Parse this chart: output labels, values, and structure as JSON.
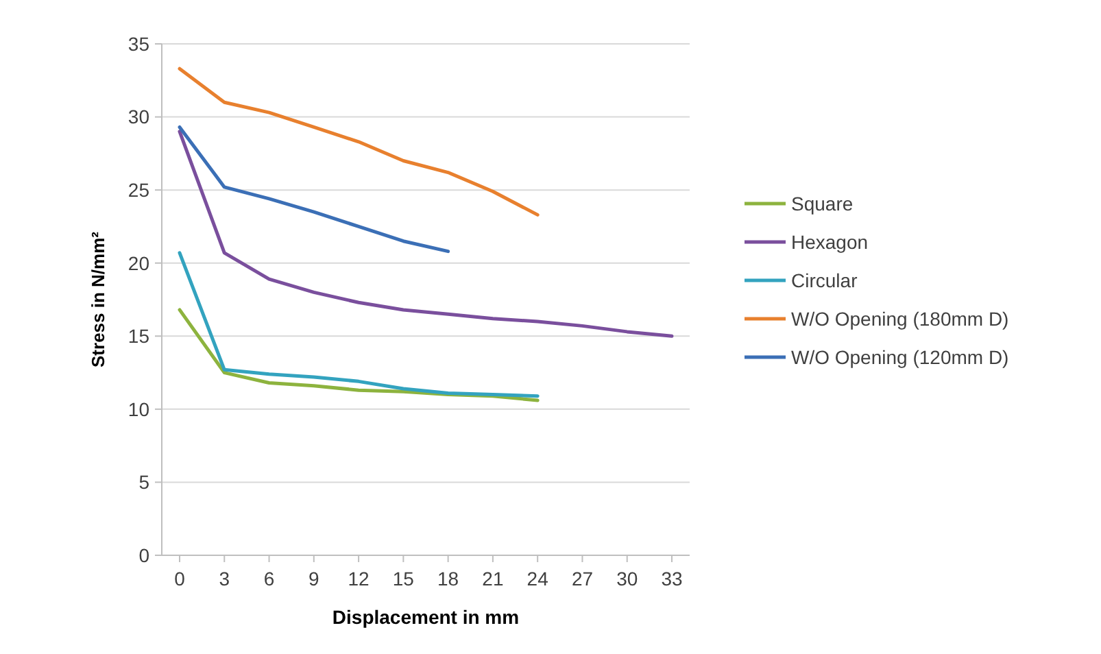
{
  "chart_data": {
    "type": "line",
    "xlabel": "Displacement in mm",
    "ylabel": "Stress in N/mm²",
    "categories": [
      "0",
      "3",
      "6",
      "9",
      "12",
      "15",
      "18",
      "21",
      "24",
      "27",
      "30",
      "33"
    ],
    "ylim": [
      0,
      35
    ],
    "yticks": [
      0,
      5,
      10,
      15,
      20,
      25,
      30,
      35
    ],
    "grid": "y",
    "legend": "right",
    "series": [
      {
        "name": "Square",
        "color": "#8db33e",
        "values": [
          16.8,
          12.5,
          11.8,
          11.6,
          11.3,
          11.2,
          11.0,
          10.9,
          10.6,
          null,
          null,
          null
        ]
      },
      {
        "name": "Hexagon",
        "color": "#7a4f9d",
        "values": [
          29.0,
          20.7,
          18.9,
          18.0,
          17.3,
          16.8,
          16.5,
          16.2,
          16.0,
          15.7,
          15.3,
          15.0
        ]
      },
      {
        "name": "Circular",
        "color": "#33a3bf",
        "values": [
          20.7,
          12.7,
          12.4,
          12.2,
          11.9,
          11.4,
          11.1,
          11.0,
          10.9,
          null,
          null,
          null
        ]
      },
      {
        "name": "W/O Opening (180mm D)",
        "color": "#e8802e",
        "values": [
          33.3,
          31.0,
          30.3,
          29.3,
          28.3,
          27.0,
          26.2,
          24.9,
          23.3,
          null,
          null,
          null
        ]
      },
      {
        "name": "W/O Opening (120mm D)",
        "color": "#3b6fb6",
        "values": [
          29.3,
          25.2,
          24.4,
          23.5,
          22.5,
          21.5,
          20.8,
          null,
          null,
          null,
          null,
          null
        ]
      }
    ]
  }
}
